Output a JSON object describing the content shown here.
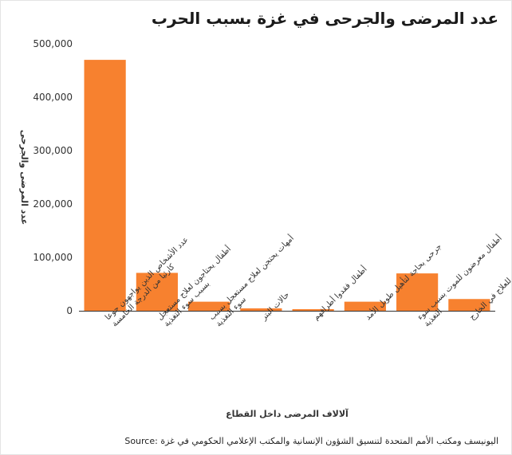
{
  "title": "عدد المرضى والجرحى في غزة بسبب الحرب",
  "source": "اليونيسف ومكتب الأمم المتحدة لتنسيق الشؤون الإنسانية والمكتب الإعلامي الحكومي في غزة :Source",
  "chart_data": {
    "type": "bar",
    "title": "عدد المرضى والجرحى في غزة بسبب الحرب",
    "xlabel": "آلالاف المرضى داخل القطاع",
    "ylabel": "عدد المرضى والجرحى",
    "ylim": [
      0,
      500000
    ],
    "yticks": [
      0,
      100000,
      200000,
      300000,
      400000,
      500000
    ],
    "ytick_labels": [
      "0",
      "100,000",
      "200,000",
      "300,000",
      "400,000",
      "500,000"
    ],
    "categories": [
      [
        "عدد الأشخاص الذين يواجهون جوعا",
        "كارثيا من الدرجة الخامسة"
      ],
      [
        "أطفال يحتاجون لعلاج مستعجل",
        "بسبب سوء التغذية"
      ],
      [
        "أمهات يحتجن لعلاج مستعجل بسبب",
        "سوء التغذية"
      ],
      [
        "حالات البتر"
      ],
      [
        "أطفال فقدوا أطرافهم"
      ],
      [
        "جرحى بحاجة لتأهيل طويل الأمد"
      ],
      [
        "أطفال معرضون للموت بسبب سوء",
        "التغذية"
      ],
      [
        "مرضى بحاجة للعلاج في الخارج"
      ]
    ],
    "values": [
      470000,
      71000,
      17000,
      4500,
      3000,
      17000,
      70000,
      22000
    ],
    "grid": false,
    "legend": "none",
    "colors": {
      "bar": "#f7812f",
      "axis": "#333333",
      "text": "#333333"
    }
  }
}
